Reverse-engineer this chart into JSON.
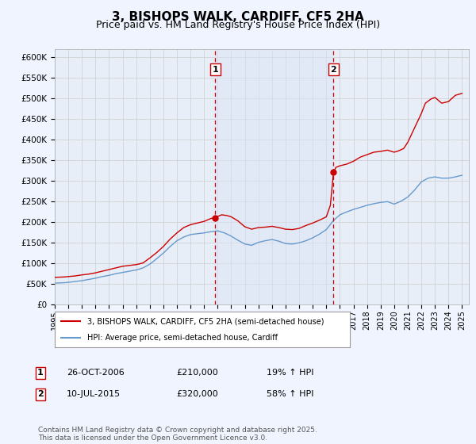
{
  "title": "3, BISHOPS WALK, CARDIFF, CF5 2HA",
  "subtitle": "Price paid vs. HM Land Registry's House Price Index (HPI)",
  "title_fontsize": 11,
  "subtitle_fontsize": 9,
  "ylim": [
    0,
    620000
  ],
  "xlim_start": 1995.0,
  "xlim_end": 2025.5,
  "ytick_values": [
    0,
    50000,
    100000,
    150000,
    200000,
    250000,
    300000,
    350000,
    400000,
    450000,
    500000,
    550000,
    600000
  ],
  "ytick_labels": [
    "£0",
    "£50K",
    "£100K",
    "£150K",
    "£200K",
    "£250K",
    "£300K",
    "£350K",
    "£400K",
    "£450K",
    "£500K",
    "£550K",
    "£600K"
  ],
  "xtick_years": [
    1995,
    1996,
    1997,
    1998,
    1999,
    2000,
    2001,
    2002,
    2003,
    2004,
    2005,
    2006,
    2007,
    2008,
    2009,
    2010,
    2011,
    2012,
    2013,
    2014,
    2015,
    2016,
    2017,
    2018,
    2019,
    2020,
    2021,
    2022,
    2023,
    2024,
    2025
  ],
  "grid_color": "#cccccc",
  "background_color": "#e8eef8",
  "fig_bg_color": "#f0f4ff",
  "red_line_color": "#cc0000",
  "blue_line_color": "#6699cc",
  "sale1_x": 2006.82,
  "sale1_y": 210000,
  "sale2_x": 2015.53,
  "sale2_y": 320000,
  "vline_color": "#cc0000",
  "legend_label_red": "3, BISHOPS WALK, CARDIFF, CF5 2HA (semi-detached house)",
  "legend_label_blue": "HPI: Average price, semi-detached house, Cardiff",
  "table_row1_num": "1",
  "table_row1_date": "26-OCT-2006",
  "table_row1_price": "£210,000",
  "table_row1_hpi": "19% ↑ HPI",
  "table_row2_num": "2",
  "table_row2_date": "10-JUL-2015",
  "table_row2_price": "£320,000",
  "table_row2_hpi": "58% ↑ HPI",
  "footnote": "Contains HM Land Registry data © Crown copyright and database right 2025.\nThis data is licensed under the Open Government Licence v3.0.",
  "footnote_fontsize": 6.5
}
